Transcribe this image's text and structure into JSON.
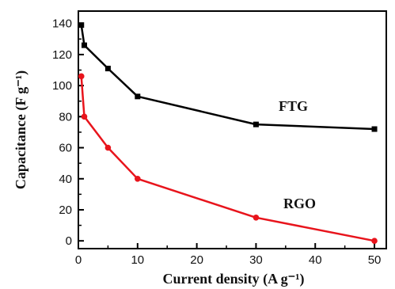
{
  "chart_data": {
    "type": "line",
    "xlabel": "Current density (A g⁻¹)",
    "ylabel": "Capacitance (F g⁻¹)",
    "xlim": [
      0,
      52
    ],
    "ylim": [
      -5,
      148
    ],
    "xticks": [
      0,
      10,
      20,
      30,
      40,
      50
    ],
    "yticks": [
      0,
      20,
      40,
      60,
      80,
      100,
      120,
      140
    ],
    "grid": false,
    "legend": "none",
    "series": [
      {
        "name": "FTG",
        "color": "#000000",
        "marker": "square",
        "x": [
          0.5,
          1,
          5,
          10,
          30,
          50
        ],
        "y": [
          139,
          126,
          111,
          93,
          75,
          72
        ]
      },
      {
        "name": "RGO",
        "color": "#e8141c",
        "marker": "circle",
        "x": [
          0.5,
          1,
          5,
          10,
          30,
          50
        ],
        "y": [
          106,
          80,
          60,
          40,
          15,
          0
        ]
      }
    ]
  }
}
